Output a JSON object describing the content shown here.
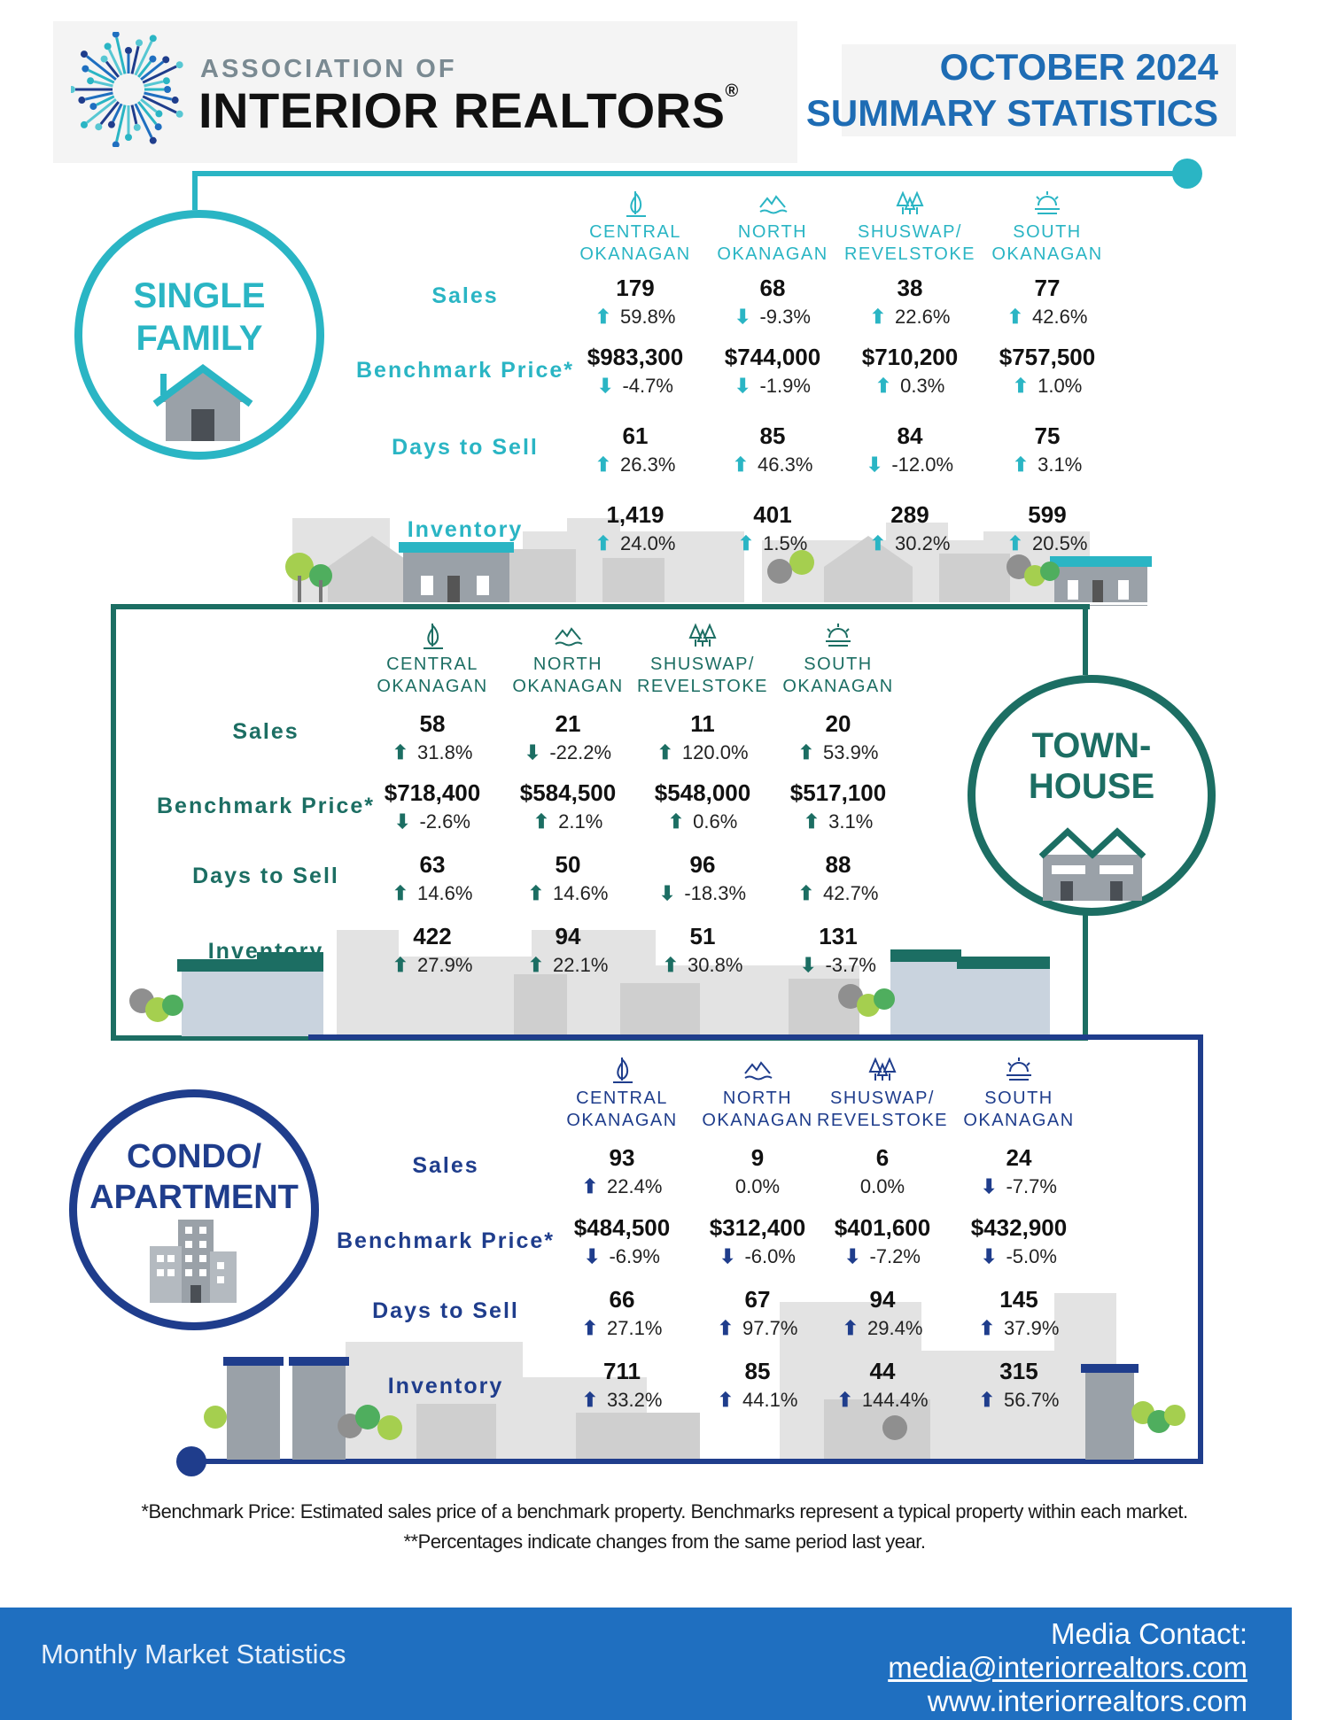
{
  "header": {
    "logo_line1": "ASSOCIATION OF",
    "logo_line2": "INTERIOR REALTORS",
    "logo_reg": "®",
    "title_line1": "OCTOBER 2024",
    "title_line2": "SUMMARY STATISTICS"
  },
  "colors": {
    "single_family": "#2ab5c4",
    "townhouse": "#1c6e63",
    "condo": "#1f3d8c",
    "footer": "#1f6fc0"
  },
  "regions": [
    {
      "line1": "CENTRAL",
      "line2": "OKANAGAN",
      "icon": "sailboat-icon"
    },
    {
      "line1": "NORTH",
      "line2": "OKANAGAN",
      "icon": "mountain-water-icon"
    },
    {
      "line1": "SHUSWAP/",
      "line2": "REVELSTOKE",
      "icon": "trees-icon"
    },
    {
      "line1": "SOUTH",
      "line2": "OKANAGAN",
      "icon": "sunset-icon"
    }
  ],
  "row_labels": {
    "sales": "Sales",
    "benchmark": "Benchmark Price*",
    "days": "Days to Sell",
    "inventory": "Inventory"
  },
  "single_family": {
    "label_line1": "SINGLE",
    "label_line2": "FAMILY",
    "sales": [
      {
        "value": "179",
        "change": "59.8%",
        "dir": "up"
      },
      {
        "value": "68",
        "change": "-9.3%",
        "dir": "down"
      },
      {
        "value": "38",
        "change": "22.6%",
        "dir": "up"
      },
      {
        "value": "77",
        "change": "42.6%",
        "dir": "up"
      }
    ],
    "benchmark": [
      {
        "value": "$983,300",
        "change": "-4.7%",
        "dir": "down"
      },
      {
        "value": "$744,000",
        "change": "-1.9%",
        "dir": "down"
      },
      {
        "value": "$710,200",
        "change": "0.3%",
        "dir": "up"
      },
      {
        "value": "$757,500",
        "change": "1.0%",
        "dir": "up"
      }
    ],
    "days": [
      {
        "value": "61",
        "change": "26.3%",
        "dir": "up"
      },
      {
        "value": "85",
        "change": "46.3%",
        "dir": "up"
      },
      {
        "value": "84",
        "change": "-12.0%",
        "dir": "down"
      },
      {
        "value": "75",
        "change": "3.1%",
        "dir": "up"
      }
    ],
    "inventory": [
      {
        "value": "1,419",
        "change": "24.0%",
        "dir": "up"
      },
      {
        "value": "401",
        "change": "1.5%",
        "dir": "up"
      },
      {
        "value": "289",
        "change": "30.2%",
        "dir": "up"
      },
      {
        "value": "599",
        "change": "20.5%",
        "dir": "up"
      }
    ]
  },
  "townhouse": {
    "label_line1": "TOWN-",
    "label_line2": "HOUSE",
    "sales": [
      {
        "value": "58",
        "change": "31.8%",
        "dir": "up"
      },
      {
        "value": "21",
        "change": "-22.2%",
        "dir": "down"
      },
      {
        "value": "11",
        "change": "120.0%",
        "dir": "up"
      },
      {
        "value": "20",
        "change": "53.9%",
        "dir": "up"
      }
    ],
    "benchmark": [
      {
        "value": "$718,400",
        "change": "-2.6%",
        "dir": "down"
      },
      {
        "value": "$584,500",
        "change": "2.1%",
        "dir": "up"
      },
      {
        "value": "$548,000",
        "change": "0.6%",
        "dir": "up"
      },
      {
        "value": "$517,100",
        "change": "3.1%",
        "dir": "up"
      }
    ],
    "days": [
      {
        "value": "63",
        "change": "14.6%",
        "dir": "up"
      },
      {
        "value": "50",
        "change": "14.6%",
        "dir": "up"
      },
      {
        "value": "96",
        "change": "-18.3%",
        "dir": "down"
      },
      {
        "value": "88",
        "change": "42.7%",
        "dir": "up"
      }
    ],
    "inventory": [
      {
        "value": "422",
        "change": "27.9%",
        "dir": "up"
      },
      {
        "value": "94",
        "change": "22.1%",
        "dir": "up"
      },
      {
        "value": "51",
        "change": "30.8%",
        "dir": "up"
      },
      {
        "value": "131",
        "change": "-3.7%",
        "dir": "down"
      }
    ]
  },
  "condo": {
    "label_line1": "CONDO/",
    "label_line2": "APARTMENT",
    "sales": [
      {
        "value": "93",
        "change": "22.4%",
        "dir": "up"
      },
      {
        "value": "9",
        "change": "0.0%",
        "dir": "none"
      },
      {
        "value": "6",
        "change": "0.0%",
        "dir": "none"
      },
      {
        "value": "24",
        "change": "-7.7%",
        "dir": "down"
      }
    ],
    "benchmark": [
      {
        "value": "$484,500",
        "change": "-6.9%",
        "dir": "down"
      },
      {
        "value": "$312,400",
        "change": "-6.0%",
        "dir": "down"
      },
      {
        "value": "$401,600",
        "change": "-7.2%",
        "dir": "down"
      },
      {
        "value": "$432,900",
        "change": "-5.0%",
        "dir": "down"
      }
    ],
    "days": [
      {
        "value": "66",
        "change": "27.1%",
        "dir": "up"
      },
      {
        "value": "67",
        "change": "97.7%",
        "dir": "up"
      },
      {
        "value": "94",
        "change": "29.4%",
        "dir": "up"
      },
      {
        "value": "145",
        "change": "37.9%",
        "dir": "up"
      }
    ],
    "inventory": [
      {
        "value": "711",
        "change": "33.2%",
        "dir": "up"
      },
      {
        "value": "85",
        "change": "44.1%",
        "dir": "up"
      },
      {
        "value": "44",
        "change": "144.4%",
        "dir": "up"
      },
      {
        "value": "315",
        "change": "56.7%",
        "dir": "up"
      }
    ]
  },
  "footnotes": {
    "line1": "*Benchmark Price: Estimated sales price of a benchmark property. Benchmarks represent a typical property within each market.",
    "line2": "**Percentages indicate changes from the same period last year."
  },
  "footer": {
    "left": "Monthly Market Statistics",
    "contact_label": "Media Contact:",
    "email": "media@interiorrealtors.com",
    "website": "www.interiorrealtors.com"
  }
}
